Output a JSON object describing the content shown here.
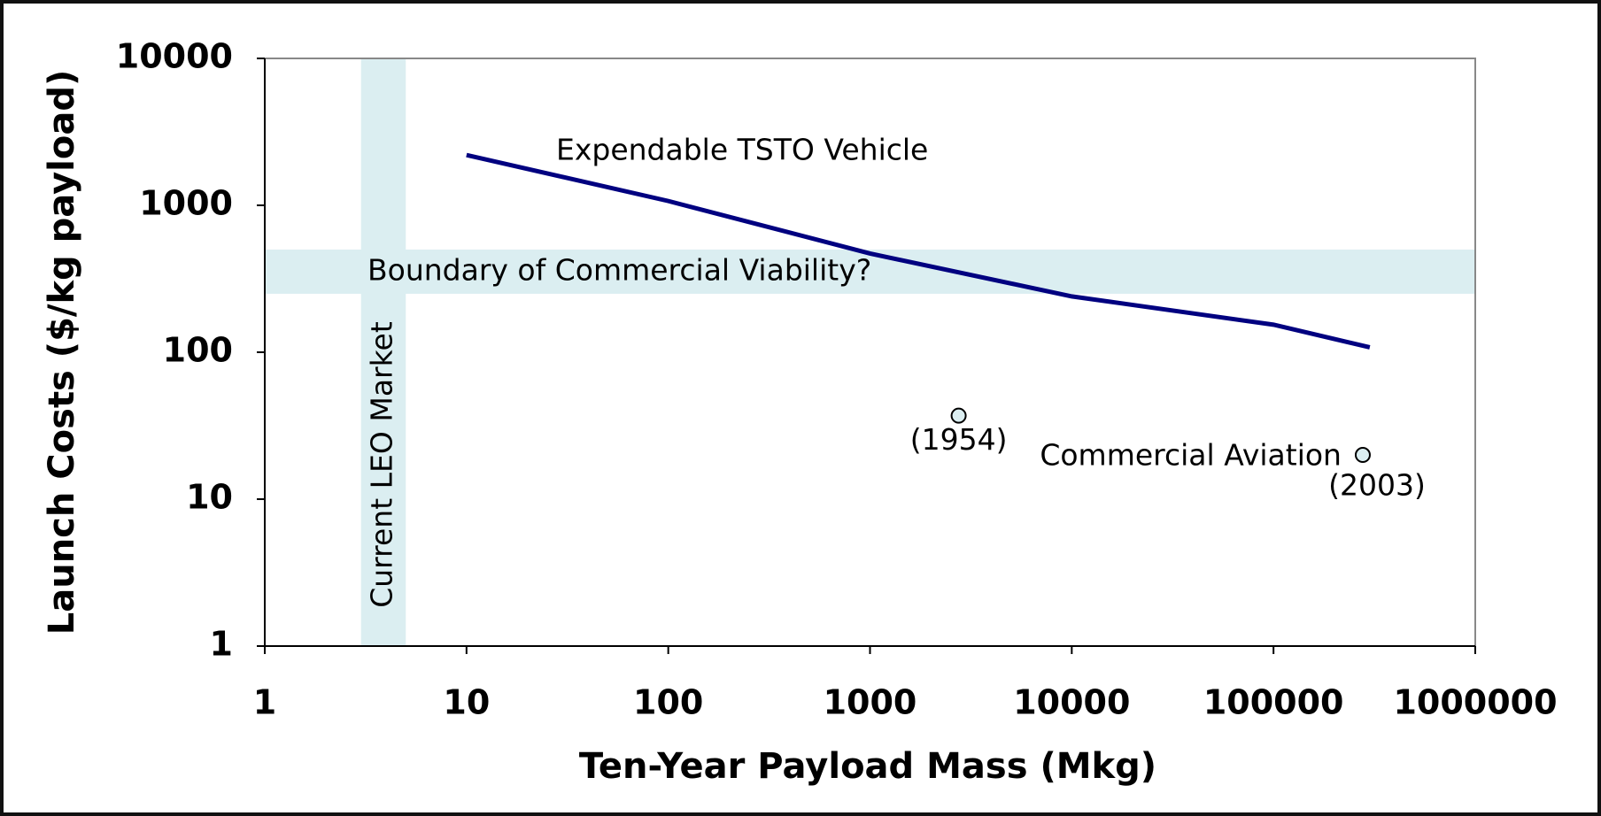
{
  "chart_data": {
    "type": "line",
    "xlabel": "Ten-Year Payload Mass (Mkg)",
    "ylabel": "Launch Costs ($/kg payload)",
    "xscale": "log",
    "yscale": "log",
    "xlim": [
      1,
      1000000
    ],
    "ylim": [
      1,
      10000
    ],
    "xticks": [
      1,
      10,
      100,
      1000,
      10000,
      100000,
      1000000
    ],
    "yticks": [
      1,
      10,
      100,
      1000,
      10000
    ],
    "regions": [
      {
        "name": "Current LEO Market",
        "axis": "x",
        "range": [
          3,
          5
        ],
        "color": "#dbeef1"
      },
      {
        "name": "Boundary of Commercial Viability?",
        "axis": "y",
        "range": [
          250,
          500
        ],
        "color": "#dbeef1"
      }
    ],
    "series": [
      {
        "name": "Expendable TSTO Vehicle",
        "kind": "line",
        "color": "#000080",
        "x": [
          10,
          100,
          1000,
          10000,
          100000,
          300000
        ],
        "values": [
          2200,
          1070,
          470,
          240,
          154,
          108
        ]
      },
      {
        "name": "Commercial Aviation",
        "kind": "scatter",
        "color": "#dbeef1",
        "x": [
          2750,
          277000
        ],
        "values": [
          37,
          20
        ],
        "labels": [
          "(1954)",
          "(2003)"
        ]
      }
    ]
  }
}
